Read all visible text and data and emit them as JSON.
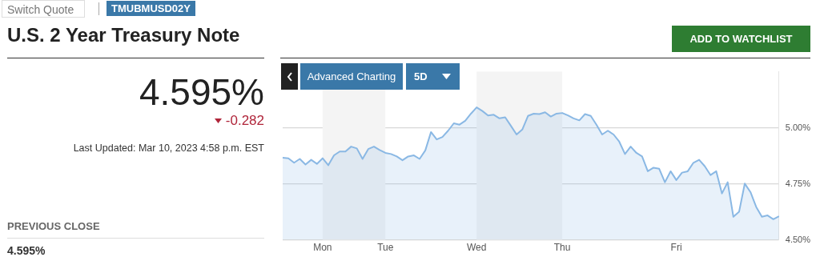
{
  "chart_data": {
    "type": "area",
    "title": "U.S. 2 Year Treasury Note",
    "annotations": [
      "Switch Quote",
      "TMUBMUSD02Y",
      "4.595%",
      "-0.282",
      "Last Updated: Mar 10, 2023 4:58 p.m. EST",
      "PREVIOUS CLOSE",
      "4.595%",
      "ADD TO WATCHLIST",
      "Advanced Charting",
      "5D"
    ],
    "categories": [
      null,
      null,
      null,
      null,
      null,
      null,
      null,
      "Mon",
      null,
      null,
      null,
      null,
      null,
      null,
      null,
      null,
      null,
      null,
      "Tue",
      null,
      null,
      null,
      null,
      null,
      null,
      null,
      null,
      null,
      null,
      null,
      null,
      null,
      null,
      null,
      "Wed",
      null,
      null,
      null,
      null,
      null,
      null,
      null,
      null,
      null,
      null,
      null,
      null,
      null,
      null,
      "Thu",
      null,
      null,
      null,
      null,
      null,
      null,
      null,
      null,
      null,
      null,
      null,
      null,
      null,
      null,
      null,
      null,
      null,
      null,
      null,
      "Fri",
      null,
      null,
      null,
      null,
      null,
      null,
      null,
      null,
      null,
      null,
      null,
      null,
      null,
      null,
      null,
      null,
      null,
      null
    ],
    "series": [
      {
        "color": "#8ab8e4",
        "values": [
          4.866,
          4.864,
          4.844,
          4.861,
          4.836,
          4.857,
          4.839,
          4.864,
          4.833,
          4.877,
          4.894,
          4.894,
          4.916,
          4.908,
          4.861,
          4.905,
          4.916,
          4.901,
          4.888,
          4.883,
          4.872,
          4.855,
          4.872,
          4.877,
          4.861,
          4.899,
          4.981,
          4.948,
          4.959,
          4.987,
          5.02,
          5.014,
          5.031,
          5.063,
          5.091,
          5.075,
          5.055,
          5.058,
          5.042,
          5.047,
          5.009,
          4.97,
          4.992,
          5.053,
          5.063,
          5.061,
          5.069,
          5.05,
          5.063,
          5.066,
          5.055,
          5.042,
          5.033,
          5.061,
          5.053,
          5.014,
          4.97,
          4.987,
          4.97,
          4.938,
          4.883,
          4.916,
          4.888,
          4.872,
          4.806,
          4.822,
          4.817,
          4.757,
          4.806,
          4.767,
          4.8,
          4.806,
          4.844,
          4.857,
          4.828,
          4.789,
          4.806,
          4.707,
          4.757,
          4.603,
          4.625,
          4.751,
          4.713,
          4.647,
          4.603,
          4.609,
          4.592,
          4.605
        ]
      }
    ],
    "ylim": [
      4.5,
      5.25
    ],
    "yticks": [
      {
        "value": 4.5,
        "label": "4.50%"
      },
      {
        "value": 4.75,
        "label": "4.75%"
      },
      {
        "value": 5,
        "label": "5.00%"
      }
    ],
    "bands": [
      {
        "axis": "x",
        "from": "Mon",
        "to": "Tue",
        "color": "#f4f4f4"
      },
      {
        "axis": "x",
        "from": "Wed",
        "to": "Thu",
        "color": "#f4f4f4"
      }
    ],
    "grid": "y",
    "legend": false,
    "marker": "none",
    "line_style": "solid"
  }
}
